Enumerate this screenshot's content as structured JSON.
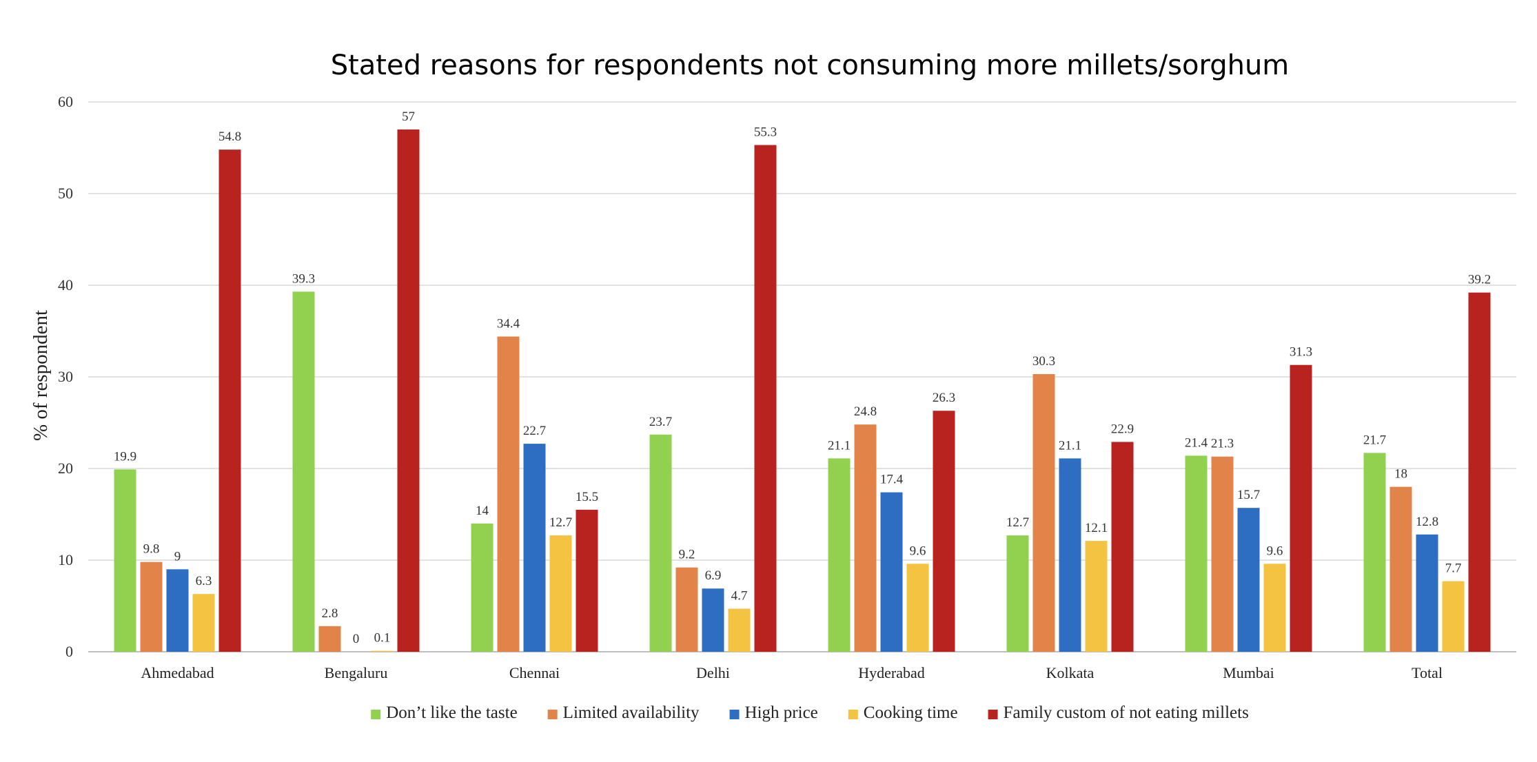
{
  "chart_data": {
    "type": "bar",
    "title": "Stated reasons for respondents not consuming more millets/sorghum",
    "xlabel": "",
    "ylabel": "% of respondent",
    "ylim": [
      0,
      60
    ],
    "yticks": [
      0,
      10,
      20,
      30,
      40,
      50,
      60
    ],
    "grid": true,
    "legend_position": "bottom",
    "categories": [
      "Ahmedabad",
      "Bengaluru",
      "Chennai",
      "Delhi",
      "Hyderabad",
      "Kolkata",
      "Mumbai",
      "Total"
    ],
    "series": [
      {
        "name": "Don’t like the  taste",
        "color": "#92d050",
        "values": [
          19.9,
          39.3,
          14,
          23.7,
          21.1,
          12.7,
          21.4,
          21.7
        ]
      },
      {
        "name": "Limited availability",
        "color": "#e2844a",
        "values": [
          9.8,
          2.8,
          34.4,
          9.2,
          24.8,
          30.3,
          21.3,
          18
        ]
      },
      {
        "name": "High price",
        "color": "#2e6ec2",
        "values": [
          9,
          0,
          22.7,
          6.9,
          17.4,
          21.1,
          15.7,
          12.8
        ]
      },
      {
        "name": "Cooking time",
        "color": "#f5c342",
        "values": [
          6.3,
          0.1,
          12.7,
          4.7,
          9.6,
          12.1,
          9.6,
          7.7
        ]
      },
      {
        "name": "Family custom of not eating millets",
        "color": "#b8231f",
        "values": [
          54.8,
          57,
          15.5,
          55.3,
          26.3,
          22.9,
          31.3,
          39.2
        ]
      }
    ]
  }
}
